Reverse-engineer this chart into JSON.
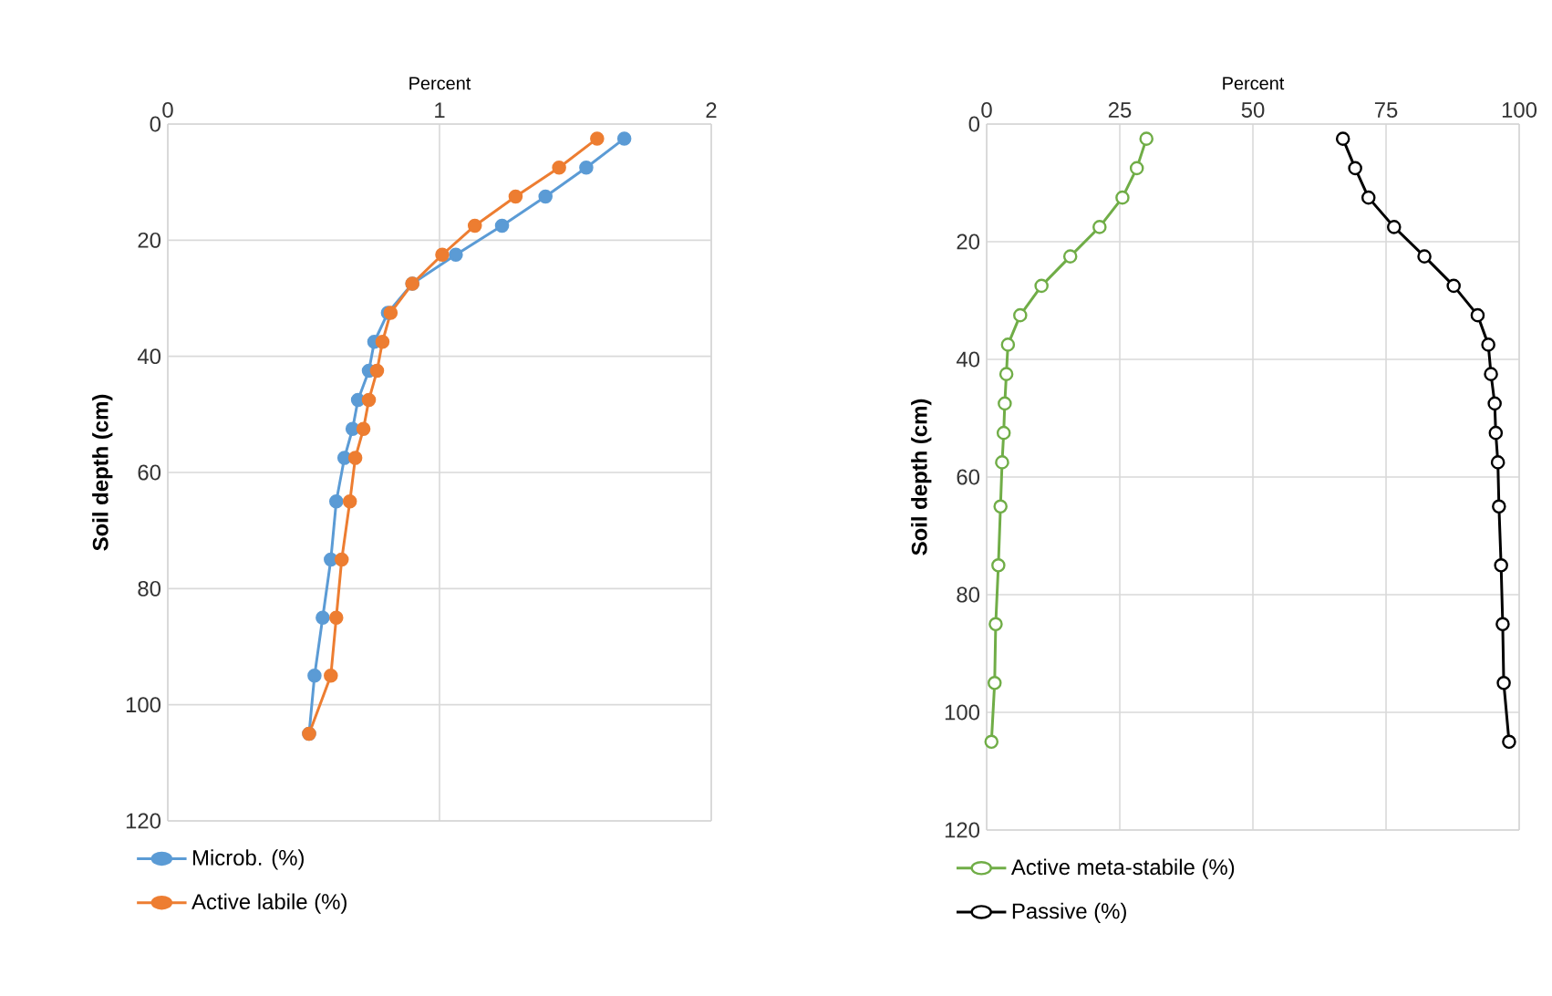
{
  "chart_data": [
    {
      "type": "line",
      "xlabel": "Percent",
      "ylabel": "Soil depth (cm)",
      "xlim": [
        0,
        2
      ],
      "xticks": [
        0,
        1,
        2
      ],
      "ylim": [
        120,
        0
      ],
      "yticks": [
        0,
        20,
        40,
        60,
        80,
        100,
        120
      ],
      "grid": true,
      "legend": "bottom",
      "marker": "circle",
      "line_style": "solid",
      "series": [
        {
          "name": "Microb. (%)",
          "color": "#5b9bd5",
          "x": [
            1.68,
            1.54,
            1.39,
            1.23,
            1.06,
            0.9,
            0.81,
            0.76,
            0.74,
            0.7,
            0.68,
            0.65,
            0.62,
            0.6,
            0.57,
            0.54,
            0.52
          ],
          "values": [
            2.5,
            7.5,
            12.5,
            17.5,
            22.5,
            27.5,
            32.5,
            37.5,
            42.5,
            47.5,
            52.5,
            57.5,
            65,
            75,
            85,
            95,
            105
          ]
        },
        {
          "name": "Active labile (%)",
          "color": "#ed7d31",
          "x": [
            1.58,
            1.44,
            1.28,
            1.13,
            1.01,
            0.9,
            0.82,
            0.79,
            0.77,
            0.74,
            0.72,
            0.69,
            0.67,
            0.64,
            0.62,
            0.6,
            0.52
          ],
          "values": [
            2.5,
            7.5,
            12.5,
            17.5,
            22.5,
            27.5,
            32.5,
            37.5,
            42.5,
            47.5,
            52.5,
            57.5,
            65,
            75,
            85,
            95,
            105
          ]
        }
      ]
    },
    {
      "type": "line",
      "xlabel": "Percent",
      "ylabel": "Soil depth (cm)",
      "xlim": [
        0,
        100
      ],
      "xticks": [
        0,
        25,
        50,
        75,
        100
      ],
      "ylim": [
        120,
        0
      ],
      "yticks": [
        0,
        20,
        40,
        60,
        80,
        100,
        120
      ],
      "grid": true,
      "legend": "bottom",
      "marker": "circle",
      "line_style": "solid",
      "series": [
        {
          "name": "Active meta-stabile (%)",
          "color": "#70ad47",
          "x": [
            30.0,
            28.2,
            25.5,
            21.2,
            15.7,
            10.3,
            6.3,
            4.0,
            3.7,
            3.4,
            3.2,
            2.9,
            2.6,
            2.2,
            1.7,
            1.5,
            0.9
          ],
          "values": [
            2.5,
            7.5,
            12.5,
            17.5,
            22.5,
            27.5,
            32.5,
            37.5,
            42.5,
            47.5,
            52.5,
            57.5,
            65,
            75,
            85,
            95,
            105
          ]
        },
        {
          "name": "Passive (%)",
          "color": "#000000",
          "x": [
            66.9,
            69.2,
            71.7,
            76.5,
            82.2,
            87.7,
            92.2,
            94.2,
            94.7,
            95.4,
            95.6,
            96.0,
            96.2,
            96.6,
            96.9,
            97.1,
            98.1
          ],
          "values": [
            2.5,
            7.5,
            12.5,
            17.5,
            22.5,
            27.5,
            32.5,
            37.5,
            42.5,
            47.5,
            52.5,
            57.5,
            65,
            75,
            85,
            95,
            105
          ]
        }
      ]
    }
  ]
}
